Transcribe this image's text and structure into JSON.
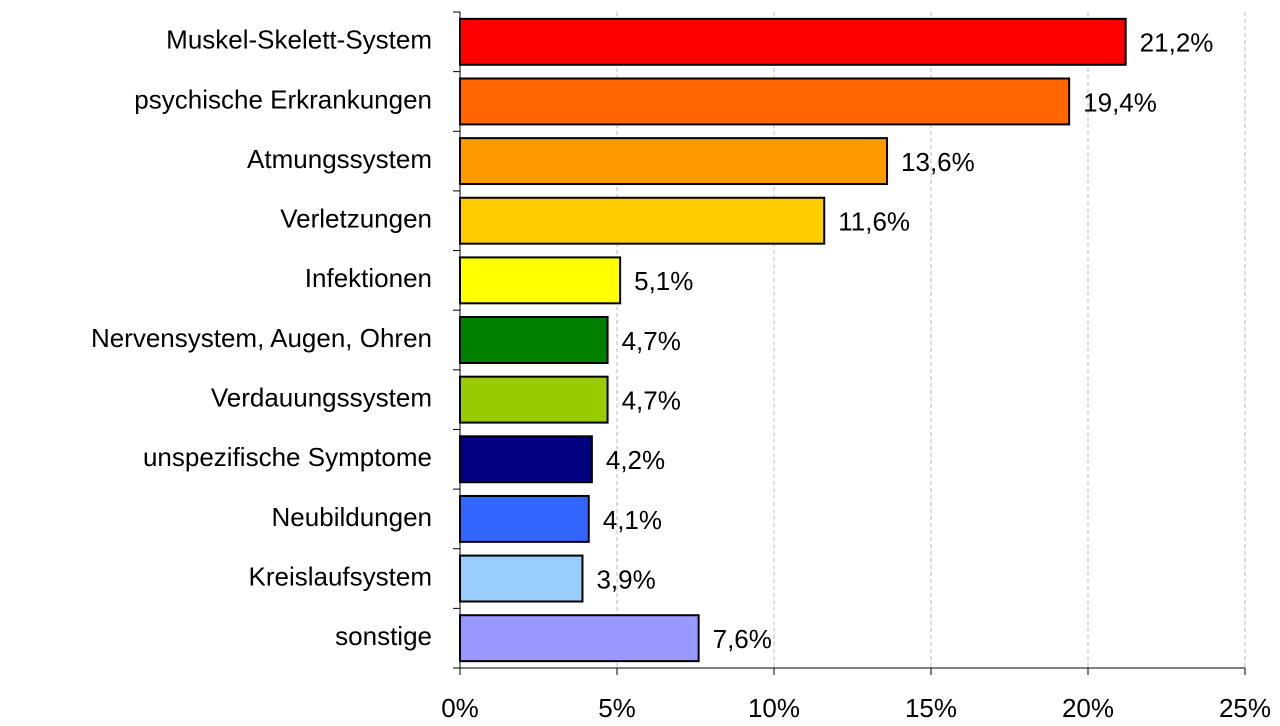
{
  "chart_data": {
    "type": "bar",
    "orientation": "horizontal",
    "categories": [
      "Muskel-Skelett-System",
      "psychische Erkrankungen",
      "Atmungssystem",
      "Verletzungen",
      "Infektionen",
      "Nervensystem, Augen, Ohren",
      "Verdauungssystem",
      "unspezifische Symptome",
      "Neubildungen",
      "Kreislaufsystem",
      "sonstige"
    ],
    "values": [
      21.2,
      19.4,
      13.6,
      11.6,
      5.1,
      4.7,
      4.7,
      4.2,
      4.1,
      3.9,
      7.6
    ],
    "value_labels": [
      "21,2%",
      "19,4%",
      "13,6%",
      "11,6%",
      "5,1%",
      "4,7%",
      "4,7%",
      "4,2%",
      "4,1%",
      "3,9%",
      "7,6%"
    ],
    "colors": [
      "#ff0000",
      "#ff6600",
      "#ff9900",
      "#ffcc00",
      "#ffff00",
      "#008000",
      "#99cc00",
      "#000080",
      "#3366ff",
      "#99ccff",
      "#9999ff"
    ],
    "xlim": [
      0,
      25
    ],
    "xticks": [
      {
        "value": 0,
        "label": "0%"
      },
      {
        "value": 5,
        "label": "5%"
      },
      {
        "value": 10,
        "label": "10%"
      },
      {
        "value": 15,
        "label": "15%"
      },
      {
        "value": 20,
        "label": "20%"
      },
      {
        "value": 25,
        "label": "25%"
      }
    ],
    "grid": true
  }
}
